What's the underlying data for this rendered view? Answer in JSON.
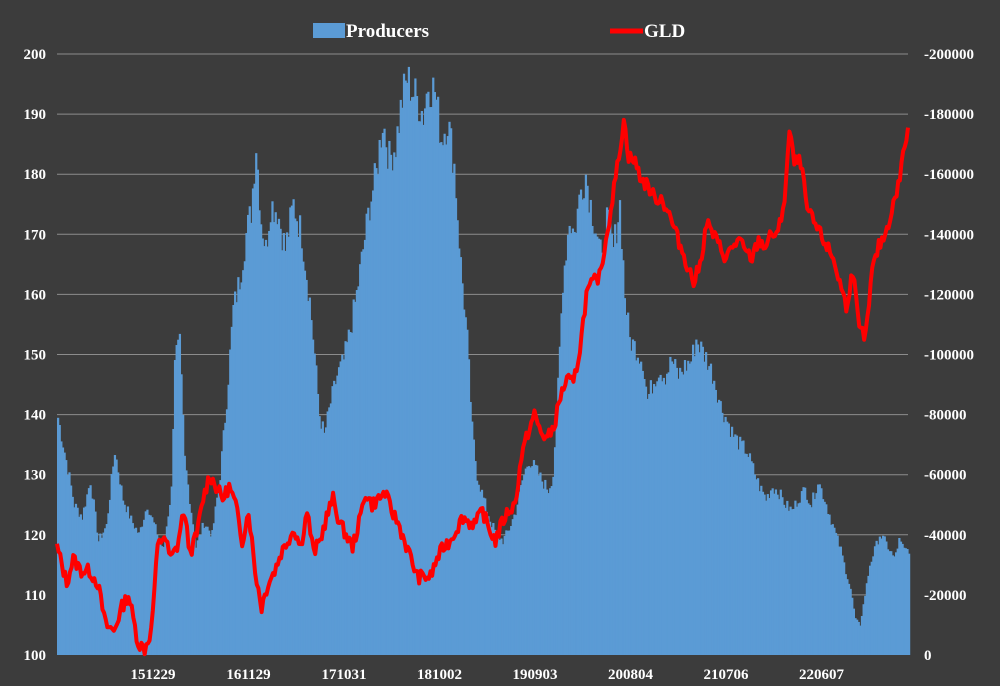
{
  "chart_data": {
    "type": "bar+line",
    "title": "",
    "legend_position": "top-center",
    "grid": true,
    "colors": {
      "background": "#3c3c3c",
      "producers": "#5b9bd5",
      "gld": "#ff0000",
      "text": "#ffffff",
      "grid": "#8c8c8c"
    },
    "x_tick_labels": [
      "151229",
      "161129",
      "171031",
      "181002",
      "190903",
      "200804",
      "210706",
      "220607"
    ],
    "y_left": {
      "ticks": [
        100,
        110,
        120,
        130,
        140,
        150,
        160,
        170,
        180,
        190,
        200
      ],
      "ylim": [
        100,
        200
      ]
    },
    "y_right": {
      "ticks": [
        0,
        -20000,
        -40000,
        -60000,
        -80000,
        -100000,
        -120000,
        -140000,
        -160000,
        -180000,
        -200000
      ],
      "ylim": [
        0,
        -200000
      ],
      "inverted": true
    },
    "series": [
      {
        "name": "Producers",
        "type": "bar",
        "axis": "right",
        "points": [
          [
            0,
            -79000
          ],
          [
            6,
            -62000
          ],
          [
            10,
            -50000
          ],
          [
            15,
            -46000
          ],
          [
            20,
            -58000
          ],
          [
            25,
            -38000
          ],
          [
            30,
            -43000
          ],
          [
            35,
            -68000
          ],
          [
            40,
            -52000
          ],
          [
            45,
            -45000
          ],
          [
            50,
            -40000
          ],
          [
            55,
            -50000
          ],
          [
            60,
            -42000
          ],
          [
            65,
            -35000
          ],
          [
            70,
            -55000
          ],
          [
            72,
            -100000
          ],
          [
            75,
            -103000
          ],
          [
            78,
            -65000
          ],
          [
            82,
            -48000
          ],
          [
            85,
            -36000
          ],
          [
            90,
            -44000
          ],
          [
            95,
            -40000
          ],
          [
            100,
            -60000
          ],
          [
            104,
            -85000
          ],
          [
            108,
            -115000
          ],
          [
            112,
            -125000
          ],
          [
            116,
            -140000
          ],
          [
            119,
            -148000
          ],
          [
            122,
            -170000
          ],
          [
            125,
            -145000
          ],
          [
            128,
            -135000
          ],
          [
            131,
            -150000
          ],
          [
            135,
            -148000
          ],
          [
            140,
            -135000
          ],
          [
            145,
            -150000
          ],
          [
            150,
            -140000
          ],
          [
            155,
            -118000
          ],
          [
            158,
            -100000
          ],
          [
            161,
            -80000
          ],
          [
            164,
            -73000
          ],
          [
            168,
            -84000
          ],
          [
            172,
            -93000
          ],
          [
            176,
            -98000
          ],
          [
            180,
            -108000
          ],
          [
            184,
            -120000
          ],
          [
            188,
            -135000
          ],
          [
            192,
            -150000
          ],
          [
            196,
            -160000
          ],
          [
            200,
            -178000
          ],
          [
            204,
            -165000
          ],
          [
            208,
            -170000
          ],
          [
            212,
            -185000
          ],
          [
            215,
            -192000
          ],
          [
            218,
            -188000
          ],
          [
            221,
            -185000
          ],
          [
            225,
            -180000
          ],
          [
            228,
            -190000
          ],
          [
            232,
            -188000
          ],
          [
            236,
            -172000
          ],
          [
            240,
            -178000
          ],
          [
            244,
            -163000
          ],
          [
            248,
            -130000
          ],
          [
            252,
            -105000
          ],
          [
            255,
            -75000
          ],
          [
            258,
            -60000
          ],
          [
            262,
            -52000
          ],
          [
            266,
            -45000
          ],
          [
            270,
            -40000
          ],
          [
            274,
            -38000
          ],
          [
            278,
            -42000
          ],
          [
            282,
            -48000
          ],
          [
            286,
            -58000
          ],
          [
            290,
            -65000
          ],
          [
            294,
            -62000
          ],
          [
            298,
            -58000
          ],
          [
            302,
            -55000
          ],
          [
            305,
            -60000
          ],
          [
            308,
            -90000
          ],
          [
            311,
            -125000
          ],
          [
            315,
            -145000
          ],
          [
            318,
            -140000
          ],
          [
            322,
            -155000
          ],
          [
            325,
            -160000
          ],
          [
            328,
            -150000
          ],
          [
            332,
            -140000
          ],
          [
            335,
            -130000
          ],
          [
            338,
            -145000
          ],
          [
            342,
            -135000
          ],
          [
            346,
            -150000
          ],
          [
            349,
            -120000
          ],
          [
            352,
            -105000
          ],
          [
            356,
            -102000
          ],
          [
            360,
            -98000
          ],
          [
            363,
            -85000
          ],
          [
            366,
            -90000
          ],
          [
            370,
            -95000
          ],
          [
            374,
            -93000
          ],
          [
            378,
            -98000
          ],
          [
            382,
            -93000
          ],
          [
            386,
            -96000
          ],
          [
            390,
            -98000
          ],
          [
            393,
            -105000
          ],
          [
            396,
            -102000
          ],
          [
            400,
            -98000
          ],
          [
            404,
            -92000
          ],
          [
            408,
            -83000
          ],
          [
            412,
            -78000
          ],
          [
            416,
            -73000
          ],
          [
            420,
            -70000
          ],
          [
            424,
            -68000
          ],
          [
            428,
            -62000
          ],
          [
            432,
            -56000
          ],
          [
            436,
            -52000
          ],
          [
            440,
            -56000
          ],
          [
            444,
            -54000
          ],
          [
            448,
            -50000
          ],
          [
            452,
            -48000
          ],
          [
            456,
            -52000
          ],
          [
            460,
            -55000
          ],
          [
            464,
            -50000
          ],
          [
            468,
            -58000
          ],
          [
            472,
            -52000
          ],
          [
            476,
            -45000
          ],
          [
            479,
            -40000
          ],
          [
            482,
            -35000
          ],
          [
            485,
            -28000
          ],
          [
            488,
            -22000
          ],
          [
            491,
            -12000
          ],
          [
            494,
            -10000
          ],
          [
            497,
            -20000
          ],
          [
            500,
            -30000
          ],
          [
            503,
            -35000
          ],
          [
            506,
            -40000
          ],
          [
            509,
            -38000
          ],
          [
            512,
            -35000
          ],
          [
            515,
            -32000
          ],
          [
            518,
            -38000
          ],
          [
            521,
            -35000
          ],
          [
            524,
            -35000
          ]
        ]
      },
      {
        "name": "GLD",
        "type": "line",
        "axis": "left",
        "points": [
          [
            0,
            118
          ],
          [
            6,
            112
          ],
          [
            10,
            116
          ],
          [
            15,
            114
          ],
          [
            20,
            114
          ],
          [
            25,
            112
          ],
          [
            30,
            105
          ],
          [
            35,
            104
          ],
          [
            40,
            108
          ],
          [
            44,
            110
          ],
          [
            47,
            106
          ],
          [
            50,
            102
          ],
          [
            54,
            101
          ],
          [
            58,
            104
          ],
          [
            62,
            118
          ],
          [
            66,
            120
          ],
          [
            70,
            116
          ],
          [
            74,
            118
          ],
          [
            78,
            124
          ],
          [
            82,
            117
          ],
          [
            86,
            120
          ],
          [
            90,
            126
          ],
          [
            94,
            130
          ],
          [
            98,
            128
          ],
          [
            102,
            126
          ],
          [
            106,
            128
          ],
          [
            110,
            125
          ],
          [
            114,
            119
          ],
          [
            118,
            124
          ],
          [
            122,
            114
          ],
          [
            126,
            108
          ],
          [
            130,
            112
          ],
          [
            134,
            114
          ],
          [
            138,
            117
          ],
          [
            142,
            119
          ],
          [
            146,
            121
          ],
          [
            150,
            118
          ],
          [
            154,
            124
          ],
          [
            158,
            117
          ],
          [
            162,
            119
          ],
          [
            166,
            123
          ],
          [
            170,
            126
          ],
          [
            174,
            122
          ],
          [
            178,
            120
          ],
          [
            182,
            118
          ],
          [
            186,
            122
          ],
          [
            190,
            127
          ],
          [
            194,
            125
          ],
          [
            198,
            126
          ],
          [
            202,
            127
          ],
          [
            206,
            124
          ],
          [
            210,
            122
          ],
          [
            214,
            119
          ],
          [
            218,
            116
          ],
          [
            222,
            113
          ],
          [
            226,
            113
          ],
          [
            230,
            113
          ],
          [
            234,
            116
          ],
          [
            238,
            118
          ],
          [
            242,
            119
          ],
          [
            246,
            121
          ],
          [
            250,
            123
          ],
          [
            254,
            122
          ],
          [
            258,
            122
          ],
          [
            262,
            124
          ],
          [
            266,
            121
          ],
          [
            270,
            119
          ],
          [
            274,
            122
          ],
          [
            278,
            124
          ],
          [
            282,
            125
          ],
          [
            286,
            133
          ],
          [
            290,
            137
          ],
          [
            294,
            140
          ],
          [
            298,
            137
          ],
          [
            302,
            136
          ],
          [
            306,
            138
          ],
          [
            310,
            143
          ],
          [
            314,
            146
          ],
          [
            318,
            145
          ],
          [
            322,
            151
          ],
          [
            326,
            160
          ],
          [
            330,
            162
          ],
          [
            334,
            163
          ],
          [
            338,
            169
          ],
          [
            342,
            176
          ],
          [
            346,
            183
          ],
          [
            349,
            189
          ],
          [
            352,
            183
          ],
          [
            356,
            182
          ],
          [
            360,
            179
          ],
          [
            364,
            178
          ],
          [
            368,
            176
          ],
          [
            372,
            176
          ],
          [
            376,
            174
          ],
          [
            380,
            171
          ],
          [
            384,
            168
          ],
          [
            388,
            165
          ],
          [
            392,
            162
          ],
          [
            396,
            165
          ],
          [
            400,
            172
          ],
          [
            404,
            170
          ],
          [
            408,
            168
          ],
          [
            412,
            166
          ],
          [
            416,
            168
          ],
          [
            420,
            169
          ],
          [
            424,
            167
          ],
          [
            428,
            166
          ],
          [
            432,
            169
          ],
          [
            436,
            168
          ],
          [
            440,
            170
          ],
          [
            444,
            170
          ],
          [
            448,
            176
          ],
          [
            451,
            187
          ],
          [
            454,
            182
          ],
          [
            458,
            182
          ],
          [
            462,
            174
          ],
          [
            466,
            172
          ],
          [
            470,
            170
          ],
          [
            474,
            168
          ],
          [
            478,
            166
          ],
          [
            482,
            162
          ],
          [
            486,
            158
          ],
          [
            490,
            164
          ],
          [
            494,
            154
          ],
          [
            498,
            153
          ],
          [
            502,
            164
          ],
          [
            506,
            168
          ],
          [
            510,
            170
          ],
          [
            514,
            174
          ],
          [
            518,
            178
          ],
          [
            522,
            185
          ],
          [
            524,
            187
          ]
        ]
      }
    ]
  }
}
